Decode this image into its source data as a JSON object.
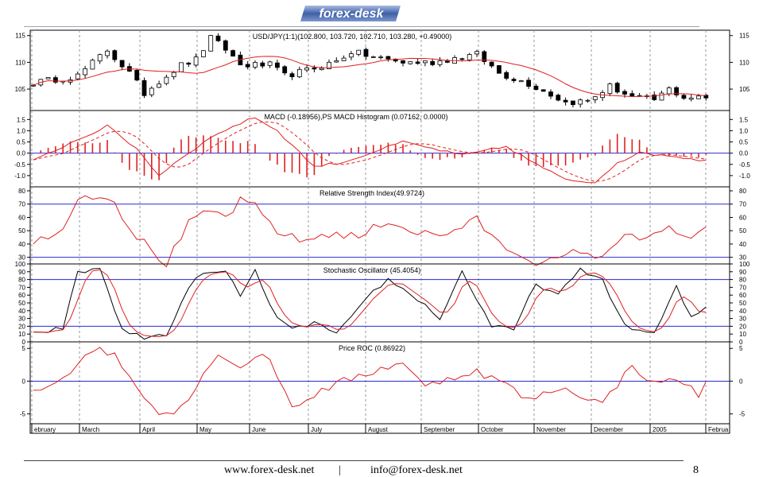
{
  "logo_text": "forex-desk",
  "footer": {
    "website": "www.forex-desk.net",
    "separator": "|",
    "email": "info@forex-desk.net",
    "page_number": "8"
  },
  "x_axis_labels": [
    "ebruary",
    "March",
    "April",
    "May",
    "June",
    "July",
    "August",
    "September",
    "October",
    "November",
    "December",
    "2005",
    "Februa"
  ],
  "chart_data": [
    {
      "type": "candlestick",
      "title": "USD/JPY(1:1)(102.800, 103.720, 102.710, 103.280, +0.49000)",
      "ylim": [
        101,
        116
      ],
      "yticks": [
        105,
        110,
        115
      ],
      "x_months": [
        "ebruary",
        "March",
        "April",
        "May",
        "June",
        "July",
        "August",
        "September",
        "October",
        "November",
        "December",
        "2005",
        "Februa"
      ],
      "close_keypoints": [
        [
          0,
          106.2
        ],
        [
          6,
          107.5
        ],
        [
          10,
          112.3
        ],
        [
          13,
          108.0
        ],
        [
          15,
          104.2
        ],
        [
          17,
          106.5
        ],
        [
          20,
          109.5
        ],
        [
          22,
          110.5
        ],
        [
          24,
          114.5
        ],
        [
          26,
          112.5
        ],
        [
          28,
          109.5
        ],
        [
          32,
          109.5
        ],
        [
          34,
          107.5
        ],
        [
          37,
          108.5
        ],
        [
          41,
          110.2
        ],
        [
          43,
          112.0
        ],
        [
          46,
          111.0
        ],
        [
          50,
          110.0
        ],
        [
          54,
          110.0
        ],
        [
          57,
          110.8
        ],
        [
          60,
          111.5
        ],
        [
          63,
          108.0
        ],
        [
          67,
          106.0
        ],
        [
          70,
          104.0
        ],
        [
          72,
          102.5
        ],
        [
          75,
          102.8
        ],
        [
          78,
          105.5
        ],
        [
          81,
          103.5
        ],
        [
          84,
          103.0
        ],
        [
          86,
          105.0
        ],
        [
          88,
          103.5
        ],
        [
          91,
          103.3
        ]
      ],
      "series": [
        {
          "name": "",
          "kind": "moving-average",
          "color": "#e02020"
        }
      ]
    },
    {
      "type": "line",
      "title": "MACD (-0.18956),PS MACD Histogram (0.07162, 0.0000)",
      "ylim": [
        -1.5,
        1.9
      ],
      "yticks": [
        1.5,
        1.0,
        0.5,
        0.0,
        -0.5,
        -1.0
      ],
      "ytick_labels": [
        "1.5",
        "1.0",
        "0.5",
        "0.0",
        "-0.5",
        "-1.0"
      ],
      "macd_keypoints": [
        [
          0,
          -0.35
        ],
        [
          4,
          0.3
        ],
        [
          10,
          1.2
        ],
        [
          14,
          0.2
        ],
        [
          17,
          -1.0
        ],
        [
          20,
          -0.2
        ],
        [
          25,
          0.9
        ],
        [
          30,
          1.6
        ],
        [
          33,
          1.0
        ],
        [
          38,
          -0.6
        ],
        [
          42,
          -0.4
        ],
        [
          50,
          0.5
        ],
        [
          54,
          0.2
        ],
        [
          58,
          -0.1
        ],
        [
          64,
          0.3
        ],
        [
          67,
          -0.3
        ],
        [
          72,
          -1.2
        ],
        [
          76,
          -1.3
        ],
        [
          79,
          -0.4
        ],
        [
          82,
          0.0
        ],
        [
          86,
          -0.1
        ],
        [
          90,
          -0.3
        ]
      ],
      "series": [
        {
          "name": "",
          "kind": "macd",
          "color": "#e02020",
          "style": "solid"
        },
        {
          "name": "",
          "kind": "signal",
          "color": "#e02020",
          "style": "dashed"
        },
        {
          "name": "",
          "kind": "histogram",
          "color": "#e02020"
        }
      ]
    },
    {
      "type": "line",
      "title": "Relative Strength Index(49.9724)",
      "ylim": [
        25,
        83
      ],
      "yticks": [
        30,
        40,
        50,
        60,
        70,
        80
      ],
      "hlines": [
        70,
        30
      ],
      "rsi_keypoints": [
        [
          0,
          43
        ],
        [
          3,
          45
        ],
        [
          6,
          74
        ],
        [
          9,
          78
        ],
        [
          11,
          72
        ],
        [
          13,
          52
        ],
        [
          16,
          35
        ],
        [
          18,
          25
        ],
        [
          21,
          55
        ],
        [
          24,
          65
        ],
        [
          26,
          60
        ],
        [
          28,
          72
        ],
        [
          30,
          68
        ],
        [
          33,
          50
        ],
        [
          36,
          42
        ],
        [
          40,
          48
        ],
        [
          44,
          45
        ],
        [
          48,
          58
        ],
        [
          51,
          50
        ],
        [
          55,
          46
        ],
        [
          60,
          58
        ],
        [
          63,
          40
        ],
        [
          66,
          32
        ],
        [
          69,
          25
        ],
        [
          72,
          30
        ],
        [
          74,
          36
        ],
        [
          77,
          28
        ],
        [
          80,
          50
        ],
        [
          83,
          42
        ],
        [
          86,
          52
        ],
        [
          89,
          44
        ],
        [
          91,
          50
        ]
      ],
      "series": [
        {
          "name": "",
          "kind": "rsi",
          "color": "#e02020"
        }
      ]
    },
    {
      "type": "line",
      "title": "Stochastic Oscillator (45.4054)",
      "ylim": [
        0,
        100
      ],
      "yticks": [
        0,
        10,
        20,
        30,
        40,
        50,
        60,
        70,
        80,
        90,
        100
      ],
      "hlines": [
        80,
        20
      ],
      "stoch_keypoints": [
        [
          0,
          10
        ],
        [
          4,
          18
        ],
        [
          6,
          88
        ],
        [
          9,
          95
        ],
        [
          12,
          15
        ],
        [
          15,
          5
        ],
        [
          18,
          10
        ],
        [
          22,
          85
        ],
        [
          26,
          90
        ],
        [
          28,
          60
        ],
        [
          30,
          90
        ],
        [
          33,
          30
        ],
        [
          35,
          15
        ],
        [
          38,
          25
        ],
        [
          41,
          10
        ],
        [
          43,
          30
        ],
        [
          46,
          65
        ],
        [
          48,
          80
        ],
        [
          52,
          55
        ],
        [
          55,
          30
        ],
        [
          58,
          90
        ],
        [
          62,
          20
        ],
        [
          65,
          15
        ],
        [
          68,
          75
        ],
        [
          71,
          60
        ],
        [
          74,
          92
        ],
        [
          77,
          80
        ],
        [
          80,
          20
        ],
        [
          84,
          10
        ],
        [
          87,
          70
        ],
        [
          89,
          30
        ],
        [
          91,
          45
        ]
      ],
      "series": [
        {
          "name": "",
          "kind": "%K",
          "color": "#000000"
        },
        {
          "name": "",
          "kind": "%D",
          "color": "#e02020"
        }
      ]
    },
    {
      "type": "line",
      "title": "Price ROC (0.86922)",
      "ylim": [
        -6.5,
        6
      ],
      "yticks": [
        5,
        0,
        -5
      ],
      "hlines": [
        0
      ],
      "roc_keypoints": [
        [
          0,
          -1.5
        ],
        [
          4,
          0.5
        ],
        [
          8,
          5
        ],
        [
          11,
          4
        ],
        [
          14,
          -1
        ],
        [
          17,
          -4.5
        ],
        [
          19,
          -5
        ],
        [
          22,
          -1
        ],
        [
          25,
          4.5
        ],
        [
          28,
          2
        ],
        [
          31,
          4.5
        ],
        [
          33,
          1
        ],
        [
          35,
          -4
        ],
        [
          38,
          -2
        ],
        [
          42,
          0
        ],
        [
          46,
          1.5
        ],
        [
          50,
          3
        ],
        [
          53,
          -1
        ],
        [
          56,
          0.5
        ],
        [
          60,
          1.5
        ],
        [
          64,
          -0.5
        ],
        [
          67,
          -3
        ],
        [
          71,
          -1
        ],
        [
          74,
          -2
        ],
        [
          77,
          -3.5
        ],
        [
          81,
          2.5
        ],
        [
          84,
          -0.5
        ],
        [
          87,
          0.5
        ],
        [
          90,
          -2
        ],
        [
          92,
          1
        ]
      ],
      "series": [
        {
          "name": "",
          "kind": "roc",
          "color": "#e02020"
        }
      ]
    }
  ]
}
